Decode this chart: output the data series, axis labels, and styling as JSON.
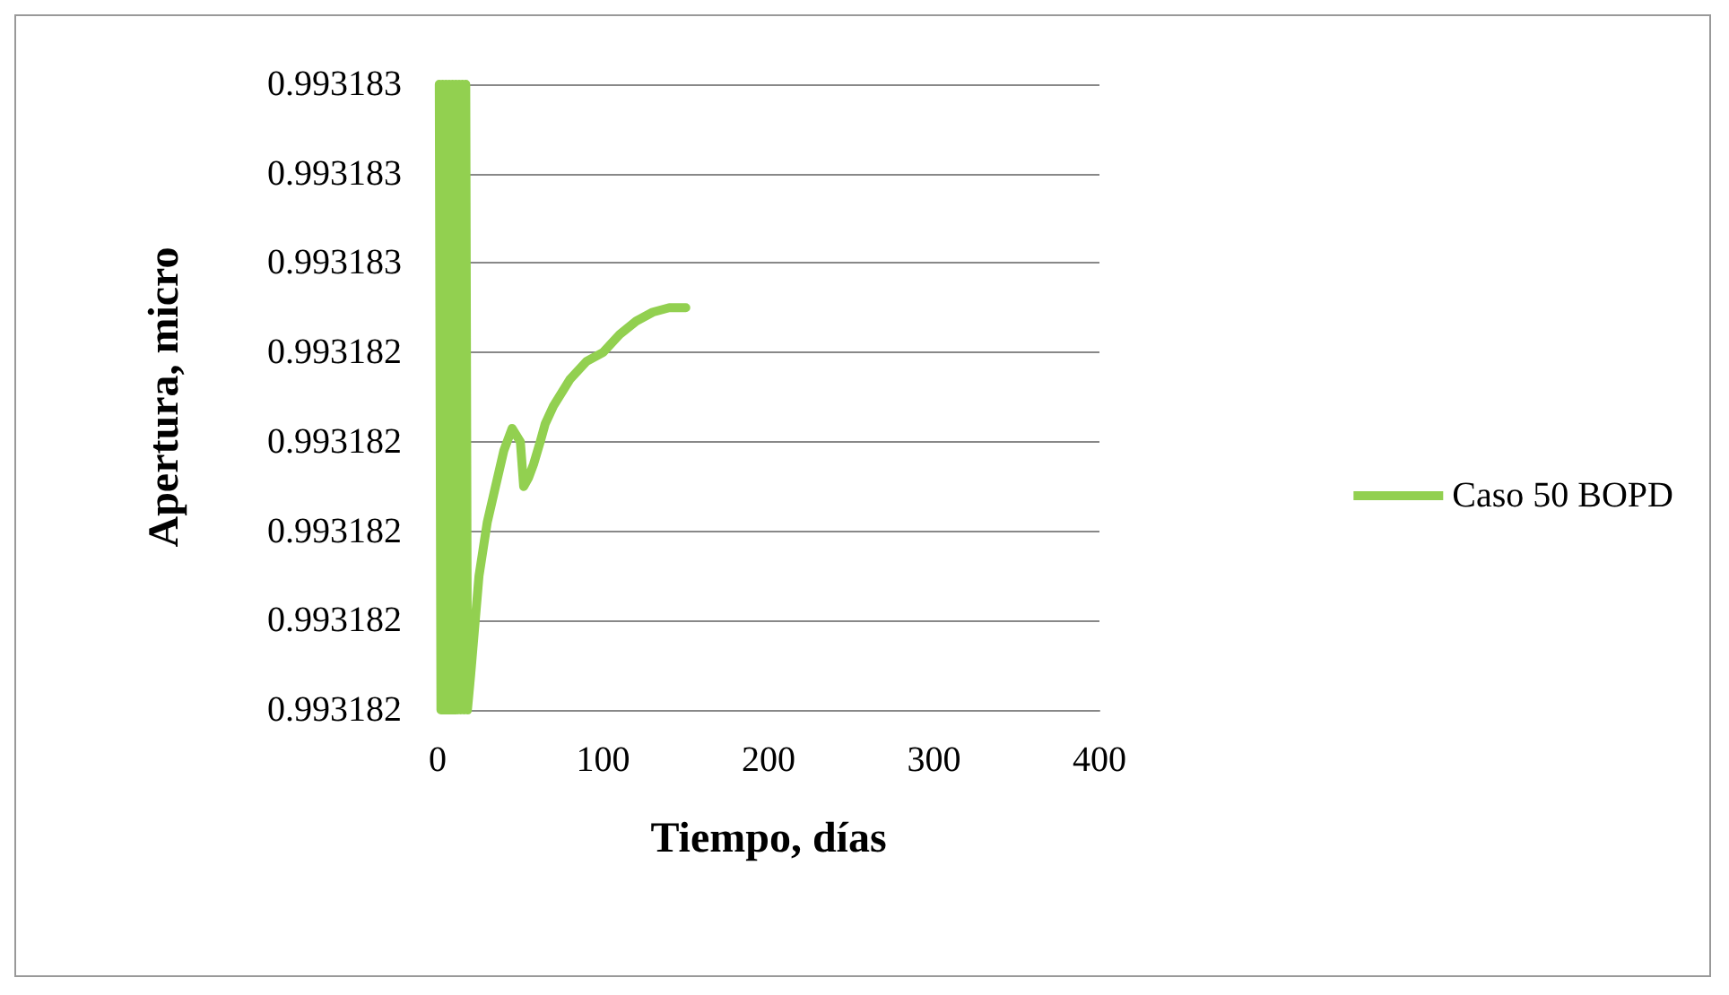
{
  "chart_data": {
    "type": "line",
    "xlabel": "Tiempo, días",
    "ylabel": "Apertura, micro",
    "xlim": [
      0,
      400
    ],
    "xticks": [
      0,
      100,
      200,
      300,
      400
    ],
    "ylim": [
      0.9931816,
      0.993183
    ],
    "yticks": [
      {
        "value": 0.9931816,
        "label": "0.993182"
      },
      {
        "value": 0.9931818,
        "label": "0.993182"
      },
      {
        "value": 0.993182,
        "label": "0.993182"
      },
      {
        "value": 0.9931822,
        "label": "0.993182"
      },
      {
        "value": 0.9931824,
        "label": "0.993182"
      },
      {
        "value": 0.9931826,
        "label": "0.993183"
      },
      {
        "value": 0.9931828,
        "label": "0.993183"
      },
      {
        "value": 0.993183,
        "label": "0.993183"
      }
    ],
    "grid": "y",
    "legend": "right",
    "marker": "none",
    "line_style": "solid",
    "series": [
      {
        "name": "Caso 50 BOPD",
        "color": "#92d050",
        "x": [
          1,
          2,
          3,
          4,
          5,
          6,
          7,
          8,
          9,
          10,
          11,
          12,
          13,
          14,
          15,
          16,
          17,
          18,
          20,
          25,
          30,
          35,
          40,
          45,
          50,
          52,
          55,
          58,
          62,
          65,
          70,
          80,
          90,
          100,
          110,
          120,
          130,
          140,
          150
        ],
        "values": [
          0.993183,
          0.9931816,
          0.993183,
          0.9931816,
          0.993183,
          0.9931816,
          0.993183,
          0.9931816,
          0.993183,
          0.9931816,
          0.993183,
          0.9931816,
          0.993183,
          0.9931816,
          0.993183,
          0.9931816,
          0.993183,
          0.9931816,
          0.99318168,
          0.9931819,
          0.99318202,
          0.9931821,
          0.99318218,
          0.99318223,
          0.9931822,
          0.9931821,
          0.99318212,
          0.99318215,
          0.9931822,
          0.99318224,
          0.99318228,
          0.99318234,
          0.99318238,
          0.9931824,
          0.99318244,
          0.99318247,
          0.99318249,
          0.9931825,
          0.9931825
        ]
      }
    ]
  }
}
